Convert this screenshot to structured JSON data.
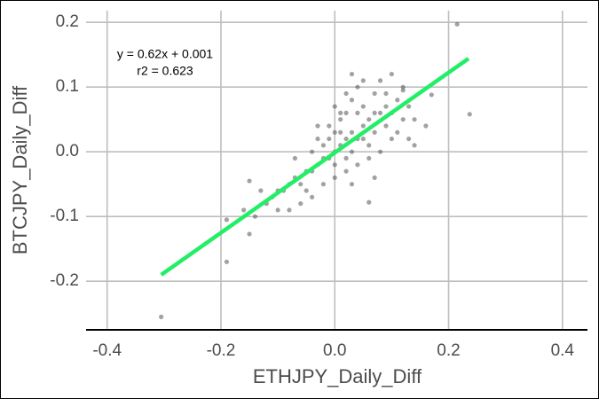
{
  "chart_data": {
    "type": "scatter",
    "x_label": "ETHJPY_Daily_Diff",
    "y_label": "BTCJPY_Daily_Diff",
    "annotations": [
      "y = 0.62x + 0.001",
      "r2 = 0.623"
    ],
    "x": [
      0.0,
      0.01,
      -0.01,
      0.02,
      -0.02,
      0.03,
      -0.03,
      0.04,
      -0.04,
      0.05,
      -0.05,
      0.01,
      -0.01,
      0.02,
      0.03,
      -0.02,
      0.0,
      0.0,
      0.06,
      0.07,
      -0.06,
      -0.07,
      0.08,
      0.09,
      -0.08,
      -0.09,
      0.04,
      0.05,
      0.02,
      -0.03,
      0.1,
      0.11,
      -0.1,
      -0.11,
      0.06,
      0.07,
      0.03,
      0.01,
      -0.04,
      -0.05,
      0.12,
      0.13,
      0.14,
      0.1,
      0.08,
      0.05,
      0.03,
      0.09,
      -0.12,
      -0.13,
      -0.14,
      -0.08,
      -0.06,
      -0.02,
      0.0,
      0.02,
      0.04,
      0.06,
      0.08,
      0.1,
      0.11,
      0.14,
      0.16,
      -0.16,
      -0.1,
      -0.07,
      -0.03,
      0.0,
      0.02,
      0.04,
      0.01,
      -0.01,
      0.05,
      0.07,
      0.09,
      0.12,
      0.13,
      0.07,
      0.03,
      -0.305,
      0.215,
      0.237,
      -0.19,
      -0.19,
      -0.15,
      -0.15,
      0.06,
      -0.04,
      0.17,
      0.12
    ],
    "values": [
      0.0,
      0.01,
      -0.01,
      0.02,
      -0.01,
      0.03,
      -0.02,
      0.02,
      -0.03,
      0.04,
      -0.03,
      0.03,
      0.02,
      -0.01,
      0.0,
      0.01,
      0.03,
      -0.02,
      0.05,
      0.03,
      -0.05,
      -0.04,
      0.06,
      0.04,
      -0.05,
      -0.06,
      0.06,
      0.07,
      0.06,
      0.02,
      0.06,
      0.08,
      -0.06,
      -0.07,
      0.01,
      0.09,
      0.08,
      0.06,
      0.0,
      -0.06,
      0.05,
      0.02,
      0.01,
      0.12,
      0.11,
      0.11,
      0.12,
      0.09,
      -0.08,
      -0.06,
      -0.1,
      -0.09,
      -0.08,
      -0.05,
      -0.04,
      -0.03,
      -0.02,
      -0.01,
      0.0,
      0.02,
      0.03,
      0.05,
      0.04,
      -0.09,
      -0.09,
      -0.01,
      0.04,
      0.07,
      0.09,
      0.1,
      0.05,
      0.04,
      0.02,
      0.06,
      0.07,
      0.1,
      0.07,
      -0.04,
      -0.05,
      -0.255,
      0.197,
      0.058,
      -0.17,
      -0.105,
      -0.127,
      -0.045,
      -0.078,
      -0.07,
      0.088,
      0.095
    ],
    "color": "#555555",
    "fit": {
      "x": [
        -0.305,
        0.235
      ],
      "y": [
        -0.19,
        0.144
      ],
      "color": "#22ee66"
    },
    "xlim": [
      -0.437,
      0.444
    ],
    "ylim": [
      -0.275,
      0.218
    ],
    "xticks": [
      -0.4,
      -0.2,
      {
        "value": 0,
        "label": "0.0"
      },
      0.2,
      0.4
    ],
    "yticks": [
      -0.2,
      -0.1,
      {
        "value": 0,
        "label": "0.0"
      },
      0.1,
      0.2
    ],
    "grid": true
  }
}
